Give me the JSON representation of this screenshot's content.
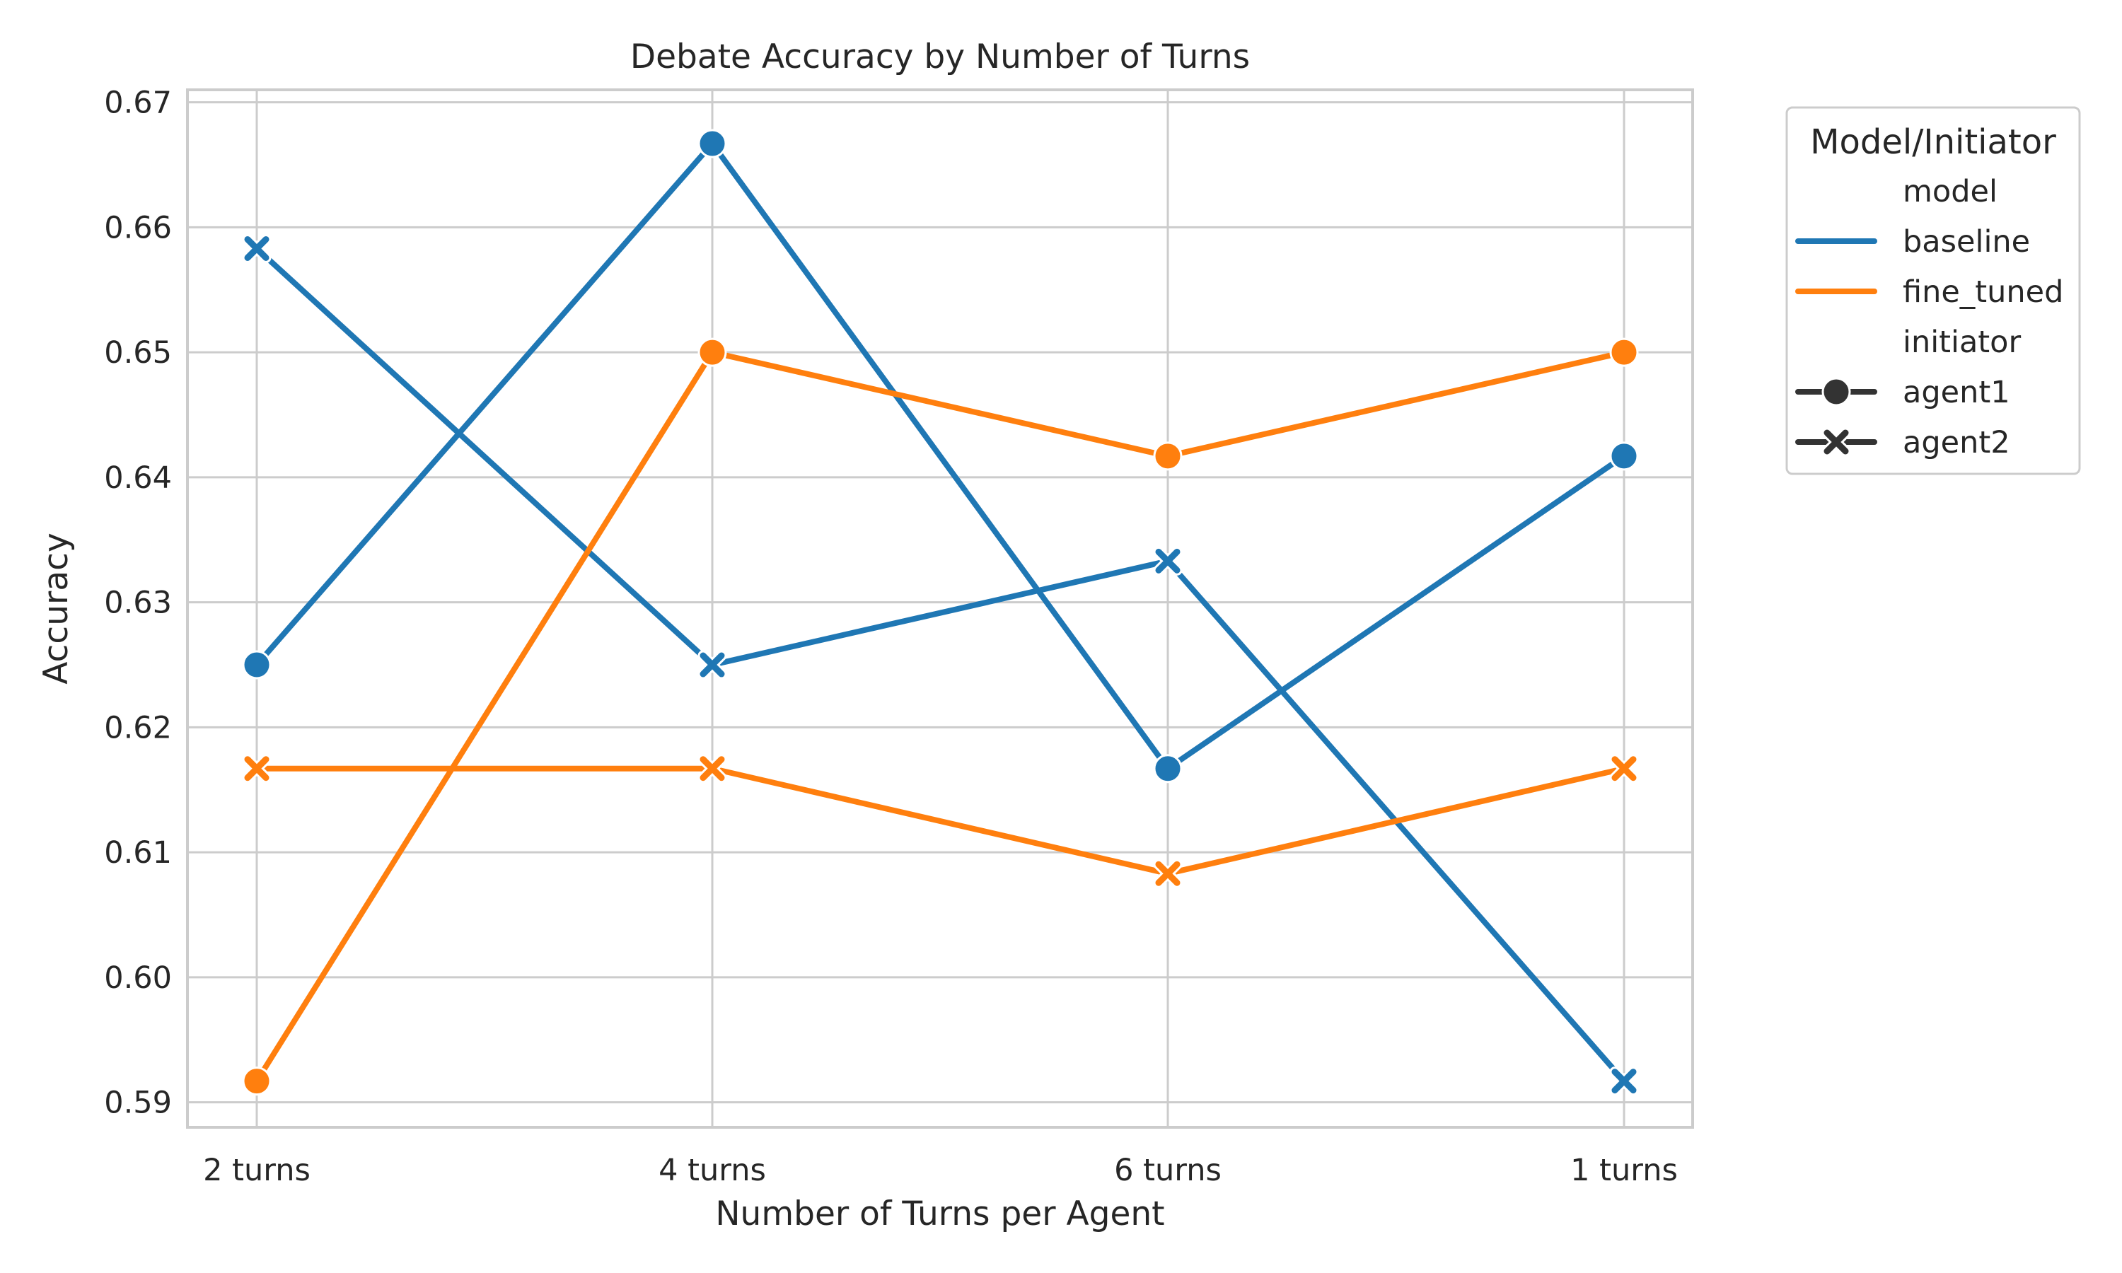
{
  "chart_data": {
    "type": "line",
    "title": "Debate Accuracy by Number of Turns",
    "xlabel": "Number of Turns per Agent",
    "ylabel": "Accuracy",
    "categories": [
      "2 turns",
      "4 turns",
      "6 turns",
      "1 turns"
    ],
    "ylim": [
      0.588,
      0.671
    ],
    "yticks": [
      0.59,
      0.6,
      0.61,
      0.62,
      0.63,
      0.64,
      0.65,
      0.66,
      0.67
    ],
    "ytick_labels": [
      "0.59",
      "0.60",
      "0.61",
      "0.62",
      "0.63",
      "0.64",
      "0.65",
      "0.66",
      "0.67"
    ],
    "grid": true,
    "legend_placement": "outside-top-right",
    "series": [
      {
        "model": "baseline",
        "initiator": "agent1",
        "marker": "circle",
        "color": "#1f77b4",
        "values": [
          0.625,
          0.6667,
          0.6167,
          0.6417
        ]
      },
      {
        "model": "baseline",
        "initiator": "agent2",
        "marker": "x",
        "color": "#1f77b4",
        "values": [
          0.6583,
          0.625,
          0.6333,
          0.5917
        ]
      },
      {
        "model": "fine_tuned",
        "initiator": "agent1",
        "marker": "circle",
        "color": "#ff7f0e",
        "values": [
          0.5917,
          0.65,
          0.6417,
          0.65
        ]
      },
      {
        "model": "fine_tuned",
        "initiator": "agent2",
        "marker": "x",
        "color": "#ff7f0e",
        "values": [
          0.6167,
          0.6167,
          0.6083,
          0.6167
        ]
      }
    ],
    "legend": {
      "title": "Model/Initiator",
      "model_header": "model",
      "models": [
        {
          "label": "baseline",
          "color": "#1f77b4"
        },
        {
          "label": "fine_tuned",
          "color": "#ff7f0e"
        }
      ],
      "initiator_header": "initiator",
      "initiators": [
        {
          "label": "agent1",
          "marker": "circle"
        },
        {
          "label": "agent2",
          "marker": "x"
        }
      ]
    }
  }
}
